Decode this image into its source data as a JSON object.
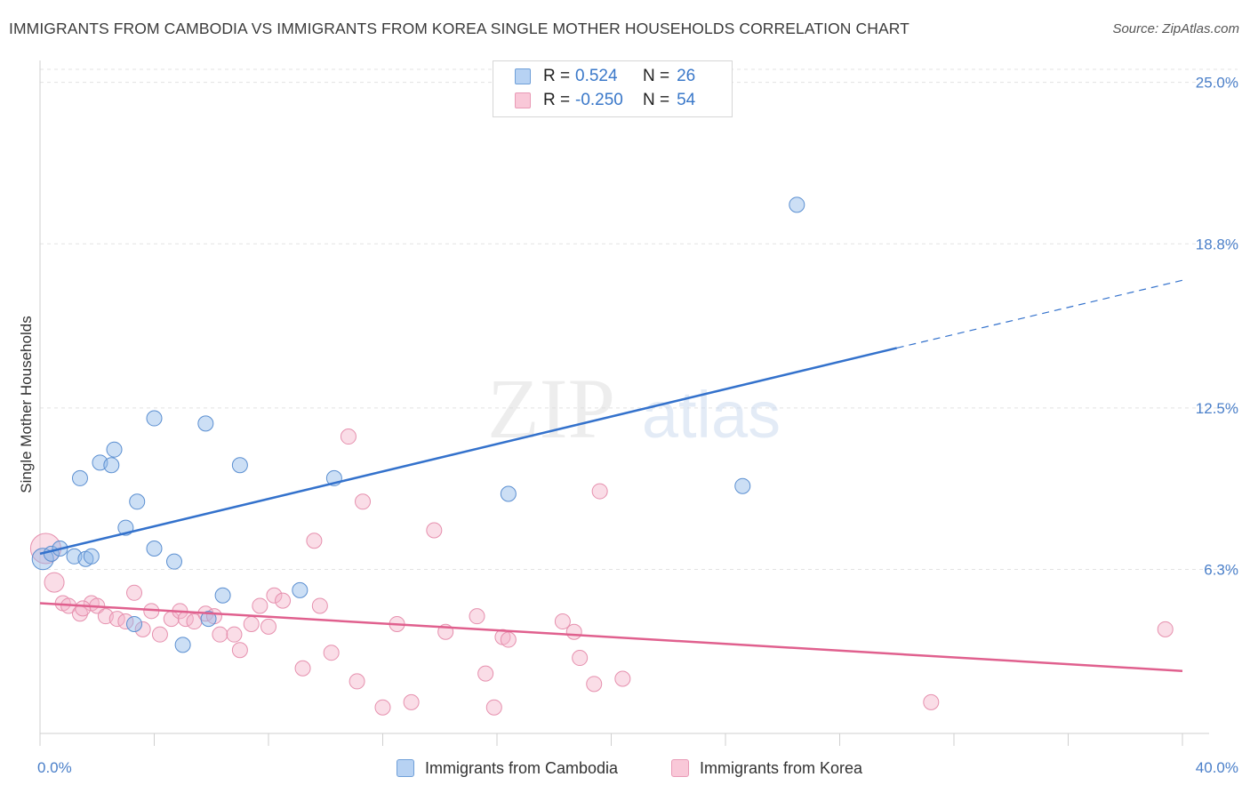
{
  "title": "IMMIGRANTS FROM CAMBODIA VS IMMIGRANTS FROM KOREA SINGLE MOTHER HOUSEHOLDS CORRELATION CHART",
  "source": "Source: ZipAtlas.com",
  "watermark": {
    "zip": "ZIP",
    "atlas": "atlas"
  },
  "legend_top": {
    "r_label": "R =",
    "n_label": "N =",
    "rows": [
      {
        "r": "0.524",
        "n": "26"
      },
      {
        "r": "-0.250",
        "n": "54"
      }
    ]
  },
  "chart_data": {
    "type": "scatter",
    "title": "IMMIGRANTS FROM CAMBODIA VS IMMIGRANTS FROM KOREA SINGLE MOTHER HOUSEHOLDS CORRELATION CHART",
    "xlabel": "",
    "ylabel": "Single Mother Households",
    "xlim": [
      0,
      40
    ],
    "ylim": [
      0,
      25.5
    ],
    "x_tick_labels": [
      "0.0%",
      "40.0%"
    ],
    "y_ticks": [
      6.3,
      12.5,
      18.8,
      25.0
    ],
    "y_tick_labels": [
      "6.3%",
      "12.5%",
      "18.8%",
      "25.0%"
    ],
    "grid": true,
    "legend_position": "bottom-center",
    "series": [
      {
        "name": "Immigrants from Cambodia",
        "color": "#8fb8e8",
        "edge": "#5b8fd1",
        "line_color": "#3472cc",
        "trend": {
          "x0": 0,
          "y0": 6.9,
          "x1": 30,
          "y1": 14.8,
          "dash_to_x": 40,
          "dash_y": 17.4
        },
        "points": [
          [
            0.1,
            6.7
          ],
          [
            0.4,
            6.9
          ],
          [
            0.7,
            7.1
          ],
          [
            1.2,
            6.8
          ],
          [
            1.4,
            9.8
          ],
          [
            1.6,
            6.7
          ],
          [
            1.8,
            6.8
          ],
          [
            2.1,
            10.4
          ],
          [
            2.5,
            10.3
          ],
          [
            2.6,
            10.9
          ],
          [
            3.0,
            7.9
          ],
          [
            3.4,
            8.9
          ],
          [
            4.0,
            7.1
          ],
          [
            4.0,
            12.1
          ],
          [
            4.7,
            6.6
          ],
          [
            5.0,
            3.4
          ],
          [
            5.9,
            4.4
          ],
          [
            5.8,
            11.9
          ],
          [
            6.4,
            5.3
          ],
          [
            7.0,
            10.3
          ],
          [
            9.1,
            5.5
          ],
          [
            10.3,
            9.8
          ],
          [
            16.4,
            9.2
          ],
          [
            24.6,
            9.5
          ],
          [
            26.5,
            20.3
          ],
          [
            3.3,
            4.2
          ]
        ]
      },
      {
        "name": "Immigrants from Korea",
        "color": "#f5b4c9",
        "edge": "#e690ae",
        "line_color": "#e0608e",
        "trend": {
          "x0": 0,
          "y0": 5.0,
          "x1": 40,
          "y1": 2.4
        },
        "points": [
          [
            0.2,
            7.1
          ],
          [
            0.5,
            5.8
          ],
          [
            0.8,
            5.0
          ],
          [
            1.0,
            4.9
          ],
          [
            1.4,
            4.6
          ],
          [
            1.8,
            5.0
          ],
          [
            2.0,
            4.9
          ],
          [
            2.3,
            4.5
          ],
          [
            2.7,
            4.4
          ],
          [
            3.0,
            4.3
          ],
          [
            3.3,
            5.4
          ],
          [
            3.6,
            4.0
          ],
          [
            3.9,
            4.7
          ],
          [
            4.2,
            3.8
          ],
          [
            4.6,
            4.4
          ],
          [
            4.9,
            4.7
          ],
          [
            5.1,
            4.4
          ],
          [
            5.4,
            4.3
          ],
          [
            5.8,
            4.6
          ],
          [
            6.1,
            4.5
          ],
          [
            6.3,
            3.8
          ],
          [
            6.8,
            3.8
          ],
          [
            7.0,
            3.2
          ],
          [
            7.4,
            4.2
          ],
          [
            7.7,
            4.9
          ],
          [
            8.0,
            4.1
          ],
          [
            8.2,
            5.3
          ],
          [
            8.5,
            5.1
          ],
          [
            9.2,
            2.5
          ],
          [
            9.6,
            7.4
          ],
          [
            9.8,
            4.9
          ],
          [
            10.2,
            3.1
          ],
          [
            10.8,
            11.4
          ],
          [
            11.1,
            2.0
          ],
          [
            11.3,
            8.9
          ],
          [
            12.0,
            1.0
          ],
          [
            12.5,
            4.2
          ],
          [
            13.0,
            1.2
          ],
          [
            13.8,
            7.8
          ],
          [
            14.2,
            3.9
          ],
          [
            15.3,
            4.5
          ],
          [
            15.6,
            2.3
          ],
          [
            15.9,
            1.0
          ],
          [
            16.2,
            3.7
          ],
          [
            16.4,
            3.6
          ],
          [
            18.3,
            4.3
          ],
          [
            18.7,
            3.9
          ],
          [
            18.9,
            2.9
          ],
          [
            19.4,
            1.9
          ],
          [
            19.6,
            9.3
          ],
          [
            20.4,
            2.1
          ],
          [
            31.2,
            1.2
          ],
          [
            39.4,
            4.0
          ],
          [
            1.5,
            4.8
          ]
        ]
      }
    ]
  }
}
